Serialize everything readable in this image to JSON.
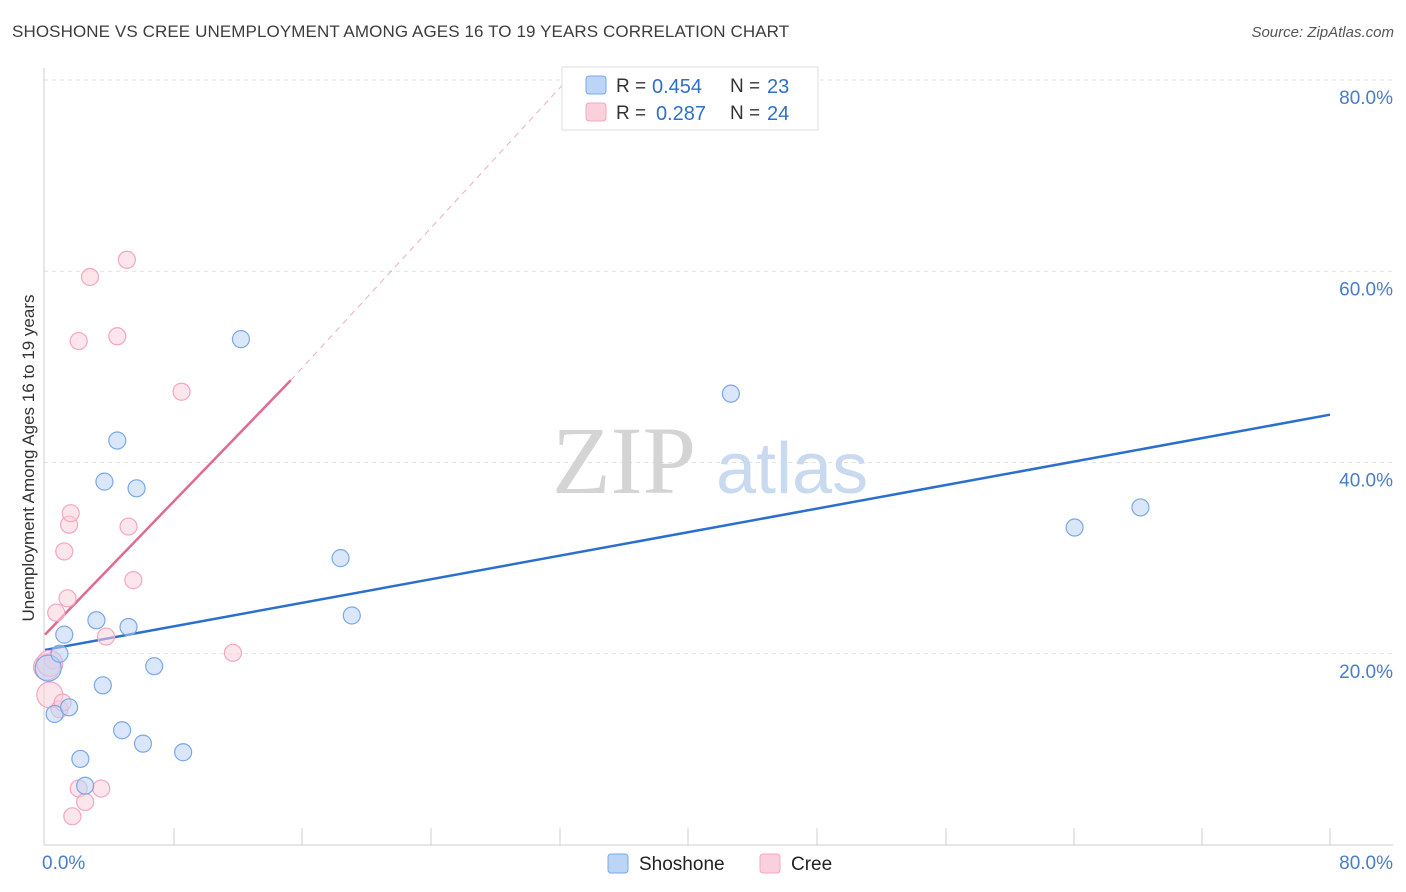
{
  "header": {
    "title": "SHOSHONE VS CREE UNEMPLOYMENT AMONG AGES 16 TO 19 YEARS CORRELATION CHART",
    "source": "Source: ZipAtlas.com"
  },
  "watermark": {
    "zip": "ZIP",
    "atlas": "atlas"
  },
  "chart_data": {
    "type": "scatter",
    "title": "SHOSHONE VS CREE UNEMPLOYMENT AMONG AGES 16 TO 19 YEARS CORRELATION CHART",
    "xlabel": "",
    "ylabel": "Unemployment Among Ages 16 to 19 years",
    "xlim": [
      0,
      80
    ],
    "ylim": [
      0,
      80
    ],
    "x_tick_labels": [
      "0.0%",
      "80.0%"
    ],
    "y_ticks": [
      20,
      40,
      60,
      80
    ],
    "y_tick_labels": [
      "20.0%",
      "40.0%",
      "60.0%",
      "80.0%"
    ],
    "grid": true,
    "legend_position": "top-center",
    "stats": [
      {
        "r_label": "R =",
        "r": "0.454",
        "n_label": "N =",
        "n": "23"
      },
      {
        "r_label": "R =",
        "r": "0.287",
        "n_label": "N =",
        "n": "24"
      }
    ],
    "series": [
      {
        "name": "Shoshone",
        "color": "#7aa8e8",
        "line_color": "#2b6fcd",
        "points": [
          [
            0.2,
            18.5
          ],
          [
            0.6,
            13.7
          ],
          [
            0.9,
            20.0
          ],
          [
            1.2,
            22.0
          ],
          [
            1.5,
            14.4
          ],
          [
            2.2,
            9.0
          ],
          [
            2.5,
            6.2
          ],
          [
            3.2,
            23.5
          ],
          [
            3.6,
            16.7
          ],
          [
            3.7,
            38.0
          ],
          [
            4.5,
            42.3
          ],
          [
            4.8,
            12.0
          ],
          [
            5.2,
            22.8
          ],
          [
            5.7,
            37.3
          ],
          [
            6.1,
            10.6
          ],
          [
            6.8,
            18.7
          ],
          [
            8.6,
            9.7
          ],
          [
            12.2,
            52.9
          ],
          [
            18.4,
            30.0
          ],
          [
            19.1,
            24.0
          ],
          [
            42.7,
            47.2
          ],
          [
            64.1,
            33.2
          ],
          [
            68.2,
            35.3
          ]
        ],
        "trend": {
          "x": [
            0,
            80
          ],
          "y": [
            20.4,
            45.0
          ],
          "dashed": false
        }
      },
      {
        "name": "Cree",
        "color": "#f4a7bf",
        "line_color": "#e06a92",
        "points": [
          [
            0.1,
            18.6
          ],
          [
            0.3,
            15.7
          ],
          [
            0.5,
            19.3
          ],
          [
            0.7,
            24.3
          ],
          [
            0.9,
            14.2
          ],
          [
            1.1,
            14.9
          ],
          [
            1.2,
            30.7
          ],
          [
            1.4,
            25.8
          ],
          [
            1.5,
            33.5
          ],
          [
            1.6,
            34.7
          ],
          [
            1.7,
            3.0
          ],
          [
            2.1,
            5.9
          ],
          [
            2.1,
            52.7
          ],
          [
            2.5,
            4.5
          ],
          [
            2.8,
            59.4
          ],
          [
            3.5,
            5.9
          ],
          [
            3.8,
            21.8
          ],
          [
            4.5,
            53.2
          ],
          [
            5.1,
            61.2
          ],
          [
            5.2,
            33.3
          ],
          [
            5.5,
            27.7
          ],
          [
            8.5,
            47.4
          ],
          [
            11.7,
            20.1
          ],
          [
            0.3,
            19.0
          ]
        ],
        "trend": {
          "x": [
            0,
            15.3
          ],
          "y": [
            22.0,
            48.6
          ],
          "dashed": false
        },
        "trend_ext": {
          "x": [
            15.3,
            32.5
          ],
          "y": [
            48.6,
            80.0
          ],
          "dashed": true
        }
      }
    ]
  }
}
